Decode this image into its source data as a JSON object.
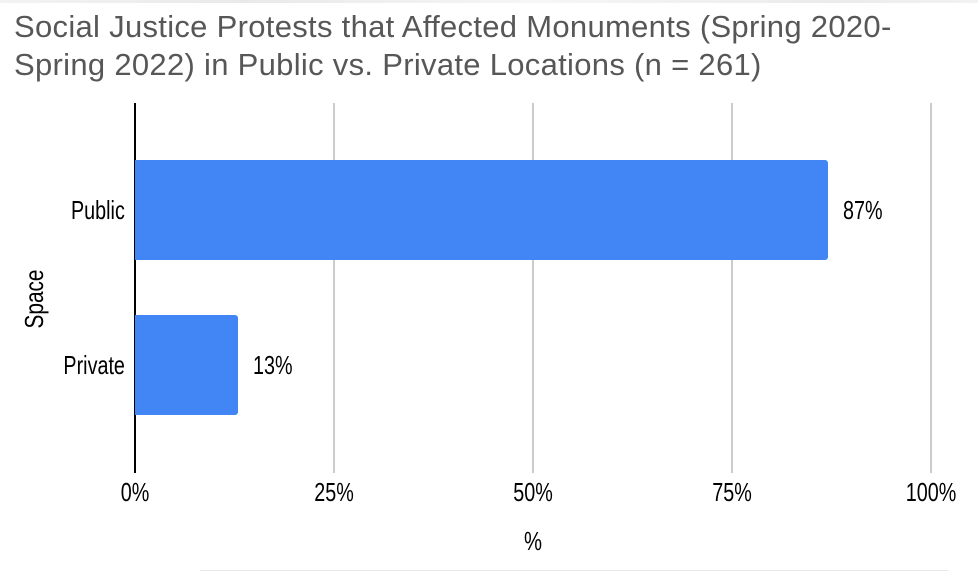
{
  "chart_data": {
    "type": "bar",
    "orientation": "horizontal",
    "title": "Social Justice Protests that Affected Monuments (Spring 2020-Spring 2022) in Public vs. Private Locations (n = 261)",
    "title_lines": [
      "Social Justice Protests that Affected Monuments (Spring 2020-",
      "Spring 2022) in Public vs. Private Locations (n = 261)"
    ],
    "categories": [
      "Public",
      "Private"
    ],
    "values": [
      87,
      13
    ],
    "value_labels": [
      "87%",
      "13%"
    ],
    "xlabel": "%",
    "ylabel": "Space",
    "xlim": [
      0,
      100
    ],
    "x_ticks": [
      {
        "value": 0,
        "label": "0%"
      },
      {
        "value": 25,
        "label": "25%"
      },
      {
        "value": 50,
        "label": "50%"
      },
      {
        "value": 75,
        "label": "75%"
      },
      {
        "value": 100,
        "label": "100%"
      }
    ],
    "grid": "vertical gridlines at 25% intervals, no horizontal gridlines",
    "legend_position": "none",
    "n_total": "261",
    "colors": {
      "bar": "#4285f4",
      "gridline": "#cccccc",
      "axis_line": "#000000",
      "title_text": "#575757",
      "label_text": "#000000"
    }
  }
}
